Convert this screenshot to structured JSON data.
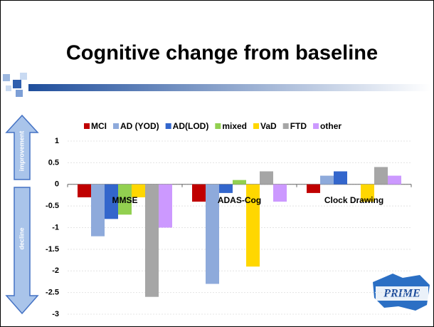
{
  "chart_data": {
    "type": "bar",
    "title": "Cognitive change from baseline",
    "categories": [
      "MMSE",
      "ADAS-Cog",
      "Clock Drawing"
    ],
    "series": [
      {
        "name": "MCI",
        "color": "#c00000",
        "values": [
          -0.3,
          -0.4,
          -0.2
        ]
      },
      {
        "name": "AD (YOD)",
        "color": "#8eaadb",
        "values": [
          -1.2,
          -2.3,
          0.2
        ]
      },
      {
        "name": "AD(LOD)",
        "color": "#3366cc",
        "values": [
          -0.8,
          -0.2,
          0.3
        ]
      },
      {
        "name": "mixed",
        "color": "#92d050",
        "values": [
          -0.7,
          0.1,
          0
        ]
      },
      {
        "name": "VaD",
        "color": "#ffd700",
        "values": [
          -0.3,
          -1.9,
          -0.4
        ]
      },
      {
        "name": "FTD",
        "color": "#a6a6a6",
        "values": [
          -2.6,
          0.3,
          0.4
        ]
      },
      {
        "name": "other",
        "color": "#cc99ff",
        "values": [
          -1.0,
          -0.4,
          0.2
        ]
      }
    ],
    "ylim": [
      -3,
      1
    ],
    "yticks": [
      -3,
      -2.5,
      -2,
      -1.5,
      -1,
      -0.5,
      0,
      0.5,
      1
    ],
    "grid": true,
    "annotations": [
      "improvement",
      "decline"
    ],
    "logo": "PRIME"
  }
}
